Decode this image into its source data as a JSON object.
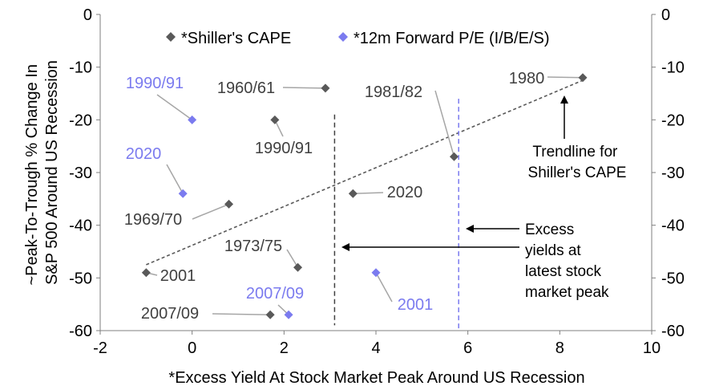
{
  "chart_data": {
    "type": "scatter",
    "title": "",
    "xlabel": "*Excess Yield At Stock Market Peak Around US Recession",
    "ylabel_line1": "~Peak-To-Trough % Change In",
    "ylabel_line2": "S&P 500 Around US Recession",
    "xlim": [
      -2,
      10
    ],
    "ylim": [
      -60,
      0
    ],
    "x_ticks": [
      -2,
      0,
      2,
      4,
      6,
      8,
      10
    ],
    "y_ticks": [
      0,
      -10,
      -20,
      -30,
      -40,
      -50,
      -60
    ],
    "grid": false,
    "legend_position": "top-center",
    "series": [
      {
        "name": "*Shiller's CAPE",
        "color": "#595959",
        "marker": "diamond",
        "points": [
          {
            "label": "1980",
            "x": 8.5,
            "y": -12
          },
          {
            "label": "1960/61",
            "x": 2.9,
            "y": -14
          },
          {
            "label": "1990/91",
            "x": 1.8,
            "y": -20
          },
          {
            "label": "1981/82",
            "x": 5.7,
            "y": -27
          },
          {
            "label": "2020",
            "x": 3.5,
            "y": -34
          },
          {
            "label": "1969/70",
            "x": 0.8,
            "y": -36
          },
          {
            "label": "1973/75",
            "x": 2.3,
            "y": -48
          },
          {
            "label": "2001",
            "x": -1.0,
            "y": -49
          },
          {
            "label": "2007/09",
            "x": 1.7,
            "y": -57
          }
        ]
      },
      {
        "name": "*12m Forward P/E (I/B/E/S)",
        "color": "#7b7bef",
        "marker": "diamond",
        "points": [
          {
            "label": "1990/91",
            "x": 0.0,
            "y": -20
          },
          {
            "label": "2020",
            "x": -0.2,
            "y": -34
          },
          {
            "label": "2001",
            "x": 4.0,
            "y": -49
          },
          {
            "label": "2007/09",
            "x": 2.1,
            "y": -57
          }
        ]
      }
    ],
    "trendline": {
      "x": [
        -1.0,
        8.5
      ],
      "y": [
        -47.5,
        -12.5
      ],
      "color": "#595959",
      "style": "dashed"
    },
    "reference_lines": [
      {
        "x": 3.1,
        "y_from": -59,
        "y_to": -19,
        "color": "#404040"
      },
      {
        "x": 5.8,
        "y_from": -60,
        "y_to": -16,
        "color": "#7b7bef"
      }
    ],
    "annotations": [
      {
        "text_lines": [
          "Trendline for",
          "Shiller's CAPE"
        ],
        "arrow": "up"
      },
      {
        "text_lines": [
          "Excess",
          "yields at",
          "latest stock",
          "market peak"
        ],
        "arrow": "left"
      }
    ]
  }
}
